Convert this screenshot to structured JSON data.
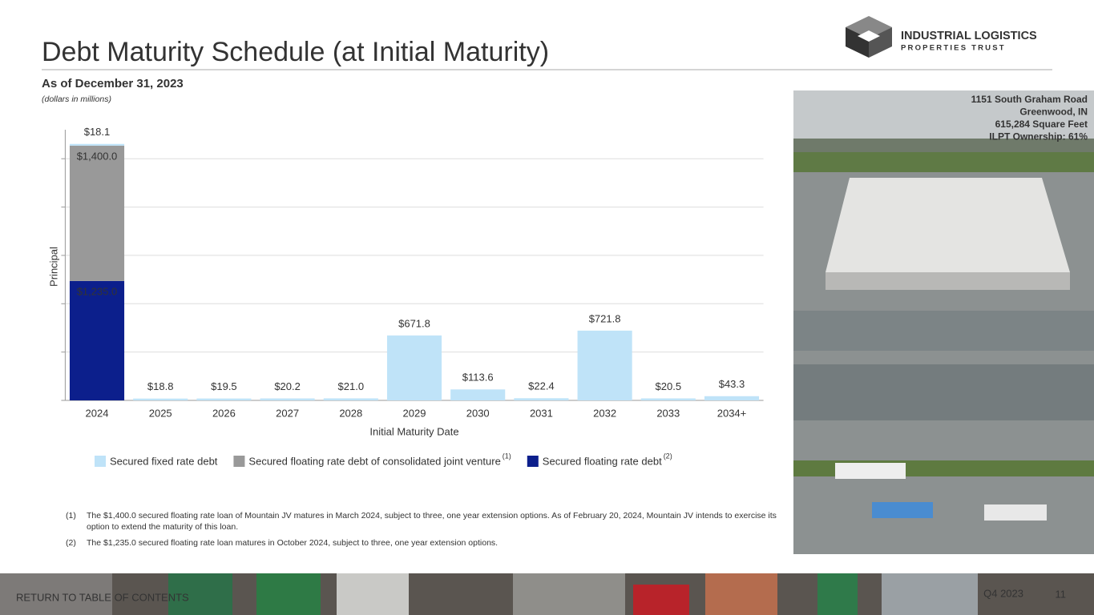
{
  "header": {
    "title": "Debt Maturity Schedule (at Initial Maturity)",
    "subtitle": "As of December 31, 2023",
    "units": "(dollars in millions)"
  },
  "logo": {
    "name": "INDUSTRIAL LOGISTICS",
    "tagline": "PROPERTIES TRUST"
  },
  "chart_data": {
    "type": "bar",
    "stacked": true,
    "categories": [
      "2024",
      "2025",
      "2026",
      "2027",
      "2028",
      "2029",
      "2030",
      "2031",
      "2032",
      "2033",
      "2034+"
    ],
    "series": [
      {
        "name": "Secured fixed rate debt",
        "color": "#bfe3f8",
        "values": [
          18.1,
          18.8,
          19.5,
          20.2,
          21.0,
          671.8,
          113.6,
          22.4,
          721.8,
          20.5,
          43.3
        ],
        "value_labels": [
          "$18.1",
          "$18.8",
          "$19.5",
          "$20.2",
          "$21.0",
          "$671.8",
          "$113.6",
          "$22.4",
          "$721.8",
          "$20.5",
          "$43.3"
        ]
      },
      {
        "name": "Secured floating rate debt of consolidated joint venture",
        "note": "(1)",
        "color": "#999999",
        "values": [
          1400.0,
          0,
          0,
          0,
          0,
          0,
          0,
          0,
          0,
          0,
          0
        ],
        "value_labels": [
          "$1,400.0",
          null,
          null,
          null,
          null,
          null,
          null,
          null,
          null,
          null,
          null
        ]
      },
      {
        "name": "Secured floating rate debt",
        "note": "(2)",
        "color": "#0c1f8c",
        "values": [
          1235.0,
          0,
          0,
          0,
          0,
          0,
          0,
          0,
          0,
          0,
          0
        ],
        "value_labels": [
          "$1,235.0",
          null,
          null,
          null,
          null,
          null,
          null,
          null,
          null,
          null,
          null
        ]
      }
    ],
    "ylim": [
      0,
      2800
    ],
    "yticks": [
      0,
      500,
      1000,
      1500,
      2000,
      2500
    ],
    "grid": true,
    "xlabel": "Initial Maturity Date",
    "ylabel": "Principal"
  },
  "footnotes": [
    {
      "marker": "(1)",
      "text": "The $1,400.0 secured floating rate loan of Mountain JV matures in March 2024, subject to three, one year extension options. As of February 20, 2024, Mountain JV intends to exercise its option to extend the maturity of this loan."
    },
    {
      "marker": "(2)",
      "text": "The $1,235.0 secured floating rate loan matures in October 2024, subject to three, one year extension options."
    }
  ],
  "photo_caption": [
    "1151 South Graham Road",
    "Greenwood, IN",
    "615,284 Square Feet",
    "ILPT Ownership: 61%"
  ],
  "footer": {
    "link": "RETURN TO TABLE OF CONTENTS",
    "period": "Q4 2023",
    "page": 11
  }
}
